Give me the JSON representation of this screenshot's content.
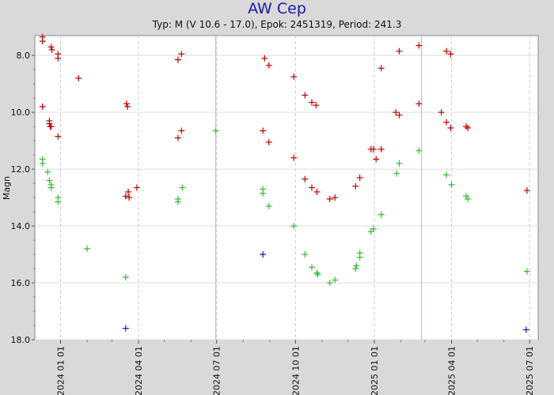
{
  "chart_data": {
    "type": "scatter",
    "title": "AW Cep",
    "subtitle": "Typ: M (V 10.6 - 17.0), Epok: 2451319, Period: 241.3",
    "ylabel": "Magn",
    "ylim": [
      7.3,
      18.0
    ],
    "y_inverted": true,
    "y_ticks": [
      "8.0",
      "10.0",
      "12.0",
      "14.0",
      "16.0",
      "18.0"
    ],
    "x_range": [
      "2023-12-02",
      "2025-07-11"
    ],
    "x_ticks": [
      "2024 01 01",
      "2024 04 01",
      "2024 07 01",
      "2024 10 01",
      "2025 01 01",
      "2025 04 01",
      "2025 07 01"
    ],
    "max_markers": [
      "2024-06-30",
      "2025-02-25"
    ],
    "grid": true,
    "colors": {
      "red": "#c00000",
      "green": "#33bb33",
      "blue": "#1010c0",
      "max_line": "#f0a0a0"
    },
    "series": [
      {
        "color": "red",
        "points": [
          [
            "2023-12-11",
            7.35
          ],
          [
            "2023-12-11",
            7.5
          ],
          [
            "2023-12-11",
            9.8
          ],
          [
            "2023-12-19",
            10.3
          ],
          [
            "2023-12-19",
            10.4
          ],
          [
            "2023-12-20",
            10.5
          ],
          [
            "2023-12-21",
            10.5
          ],
          [
            "2023-12-21",
            7.7
          ],
          [
            "2023-12-22",
            7.8
          ],
          [
            "2023-12-29",
            7.95
          ],
          [
            "2023-12-29",
            8.1
          ],
          [
            "2023-12-29",
            10.85
          ],
          [
            "2024-01-22",
            8.8
          ],
          [
            "2024-03-17",
            12.95
          ],
          [
            "2024-03-18",
            9.7
          ],
          [
            "2024-03-19",
            9.8
          ],
          [
            "2024-03-20",
            12.8
          ],
          [
            "2024-03-21",
            13.0
          ],
          [
            "2024-03-30",
            12.65
          ],
          [
            "2024-05-17",
            8.15
          ],
          [
            "2024-05-17",
            10.9
          ],
          [
            "2024-05-21",
            7.95
          ],
          [
            "2024-05-21",
            10.65
          ],
          [
            "2024-08-24",
            10.65
          ],
          [
            "2024-08-26",
            8.1
          ],
          [
            "2024-08-31",
            8.35
          ],
          [
            "2024-08-31",
            11.05
          ],
          [
            "2024-09-29",
            8.75
          ],
          [
            "2024-09-29",
            11.6
          ],
          [
            "2024-10-12",
            9.4
          ],
          [
            "2024-10-12",
            12.35
          ],
          [
            "2024-10-20",
            9.65
          ],
          [
            "2024-10-20",
            12.65
          ],
          [
            "2024-10-25",
            9.75
          ],
          [
            "2024-10-26",
            12.8
          ],
          [
            "2024-11-10",
            13.05
          ],
          [
            "2024-11-16",
            13.0
          ],
          [
            "2024-12-10",
            12.6
          ],
          [
            "2024-12-15",
            12.3
          ],
          [
            "2024-12-28",
            11.3
          ],
          [
            "2024-12-31",
            11.3
          ],
          [
            "2025-01-03",
            11.65
          ],
          [
            "2025-01-09",
            8.45
          ],
          [
            "2025-01-09",
            11.3
          ],
          [
            "2025-01-26",
            10.0
          ],
          [
            "2025-01-30",
            7.85
          ],
          [
            "2025-01-30",
            10.1
          ],
          [
            "2025-02-22",
            7.65
          ],
          [
            "2025-02-22",
            9.7
          ],
          [
            "2025-03-20",
            10.0
          ],
          [
            "2025-03-26",
            7.85
          ],
          [
            "2025-03-26",
            10.35
          ],
          [
            "2025-03-31",
            7.95
          ],
          [
            "2025-03-31",
            10.55
          ],
          [
            "2025-04-18",
            10.5
          ],
          [
            "2025-04-20",
            10.55
          ],
          [
            "2025-06-28",
            12.75
          ]
        ]
      },
      {
        "color": "green",
        "points": [
          [
            "2023-12-11",
            11.65
          ],
          [
            "2023-12-11",
            11.8
          ],
          [
            "2023-12-17",
            12.1
          ],
          [
            "2023-12-19",
            12.4
          ],
          [
            "2023-12-21",
            12.55
          ],
          [
            "2023-12-21",
            12.65
          ],
          [
            "2023-12-29",
            13.0
          ],
          [
            "2023-12-29",
            13.15
          ],
          [
            "2024-02-01",
            14.8
          ],
          [
            "2024-03-17",
            15.8
          ],
          [
            "2024-05-17",
            13.05
          ],
          [
            "2024-05-17",
            13.15
          ],
          [
            "2024-05-22",
            12.65
          ],
          [
            "2024-06-30",
            10.65
          ],
          [
            "2024-08-24",
            12.7
          ],
          [
            "2024-08-24",
            12.85
          ],
          [
            "2024-08-31",
            13.3
          ],
          [
            "2024-09-29",
            14.0
          ],
          [
            "2024-10-12",
            15.0
          ],
          [
            "2024-10-20",
            15.45
          ],
          [
            "2024-10-26",
            15.65
          ],
          [
            "2024-10-27",
            15.7
          ],
          [
            "2024-11-10",
            16.0
          ],
          [
            "2024-11-16",
            15.9
          ],
          [
            "2024-12-10",
            15.5
          ],
          [
            "2024-12-11",
            15.4
          ],
          [
            "2024-12-15",
            14.95
          ],
          [
            "2024-12-15",
            15.1
          ],
          [
            "2024-12-28",
            14.2
          ],
          [
            "2024-12-31",
            14.1
          ],
          [
            "2025-01-09",
            13.6
          ],
          [
            "2025-01-27",
            12.15
          ],
          [
            "2025-01-30",
            11.8
          ],
          [
            "2025-02-22",
            11.35
          ],
          [
            "2025-03-26",
            12.2
          ],
          [
            "2025-04-01",
            12.55
          ],
          [
            "2025-04-18",
            12.95
          ],
          [
            "2025-04-20",
            13.05
          ],
          [
            "2025-06-28",
            15.6
          ]
        ]
      },
      {
        "color": "blue",
        "points": [
          [
            "2024-03-17",
            17.6
          ],
          [
            "2024-08-24",
            15.0
          ],
          [
            "2025-06-27",
            17.65
          ]
        ]
      }
    ]
  }
}
